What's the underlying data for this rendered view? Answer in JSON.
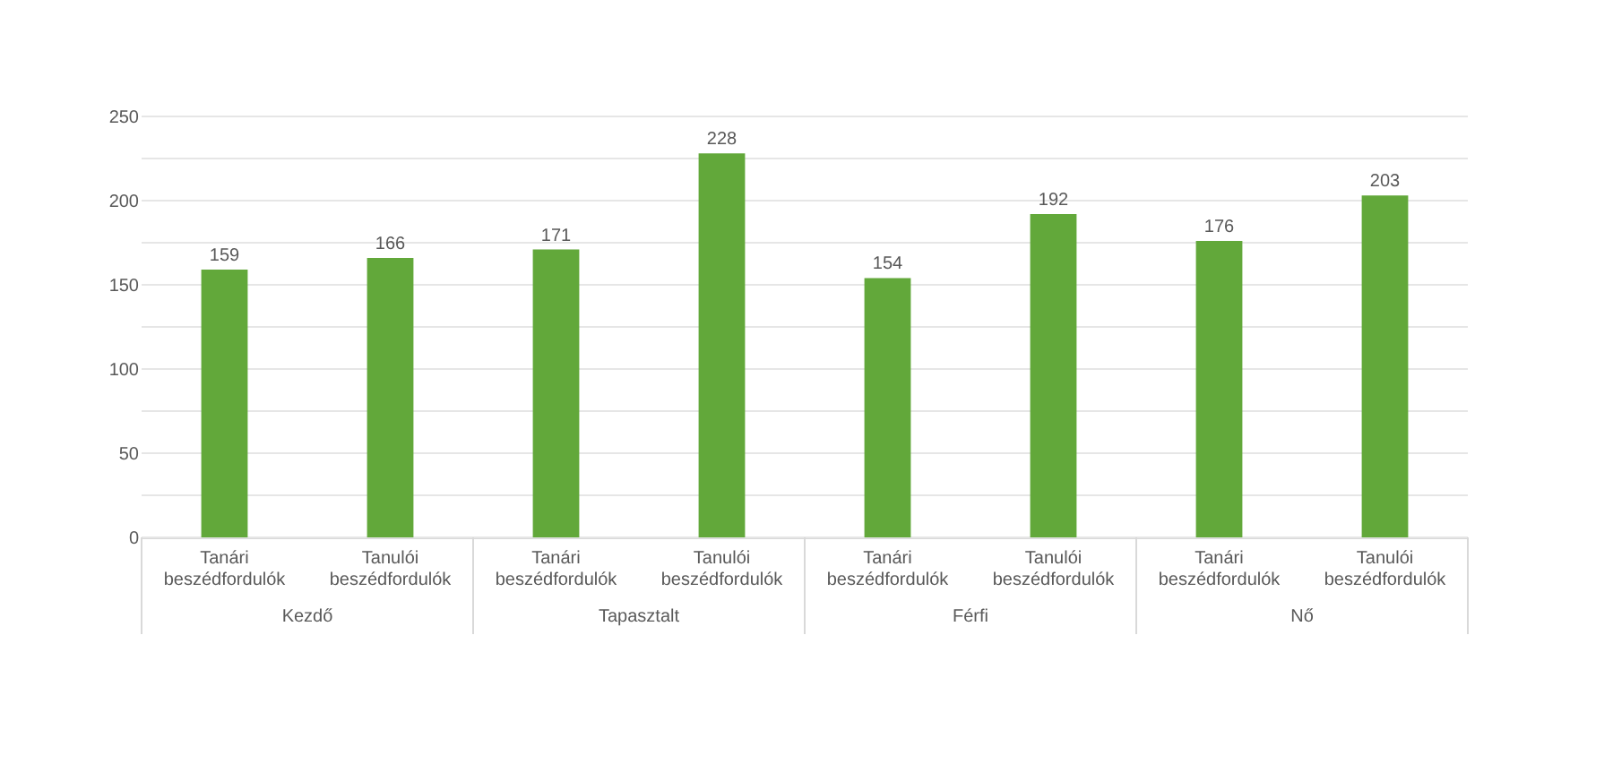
{
  "chart_data": {
    "type": "bar",
    "categories": [
      "Tanári beszédfordulók",
      "Tanulói beszédfordulók",
      "Tanári beszédfordulók",
      "Tanulói beszédfordulók",
      "Tanári beszédfordulók",
      "Tanulói beszédfordulók",
      "Tanári beszédfordulók",
      "Tanulói beszédfordulók"
    ],
    "values": [
      159,
      166,
      171,
      228,
      154,
      192,
      176,
      203
    ],
    "color": "#62a83a",
    "ylim": [
      0,
      250
    ],
    "yticks": [
      0,
      {
        "value": 25,
        "label": null
      },
      50,
      {
        "value": 75,
        "label": null
      },
      100,
      {
        "value": 125,
        "label": null
      },
      150,
      {
        "value": 175,
        "label": null
      },
      200,
      {
        "value": 225,
        "label": null
      },
      250
    ],
    "grid": "y",
    "data_labels": true,
    "annotations": [
      "Kezdő",
      "Tapasztalt",
      "Férfi",
      "Nő"
    ]
  }
}
